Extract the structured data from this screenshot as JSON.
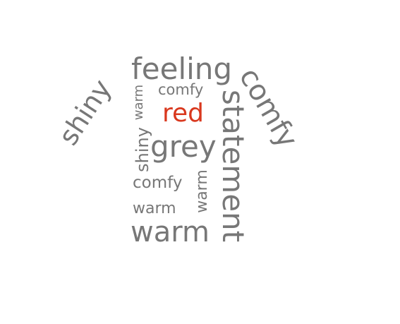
{
  "colors": {
    "default": "#777777",
    "highlight": "#d9381e"
  },
  "words": {
    "feeling": "feeling",
    "comfy_small": "comfy",
    "red": "red",
    "grey": "grey",
    "comfy_mid": "comfy",
    "warm_horizontal": "warm",
    "warm_big": "warm",
    "shiny_big": "shiny",
    "comfy_big": "comfy",
    "warm_vertical_1": "warm",
    "shiny_vertical": "shiny",
    "statement": "statement",
    "warm_vertical_2": "warm"
  }
}
